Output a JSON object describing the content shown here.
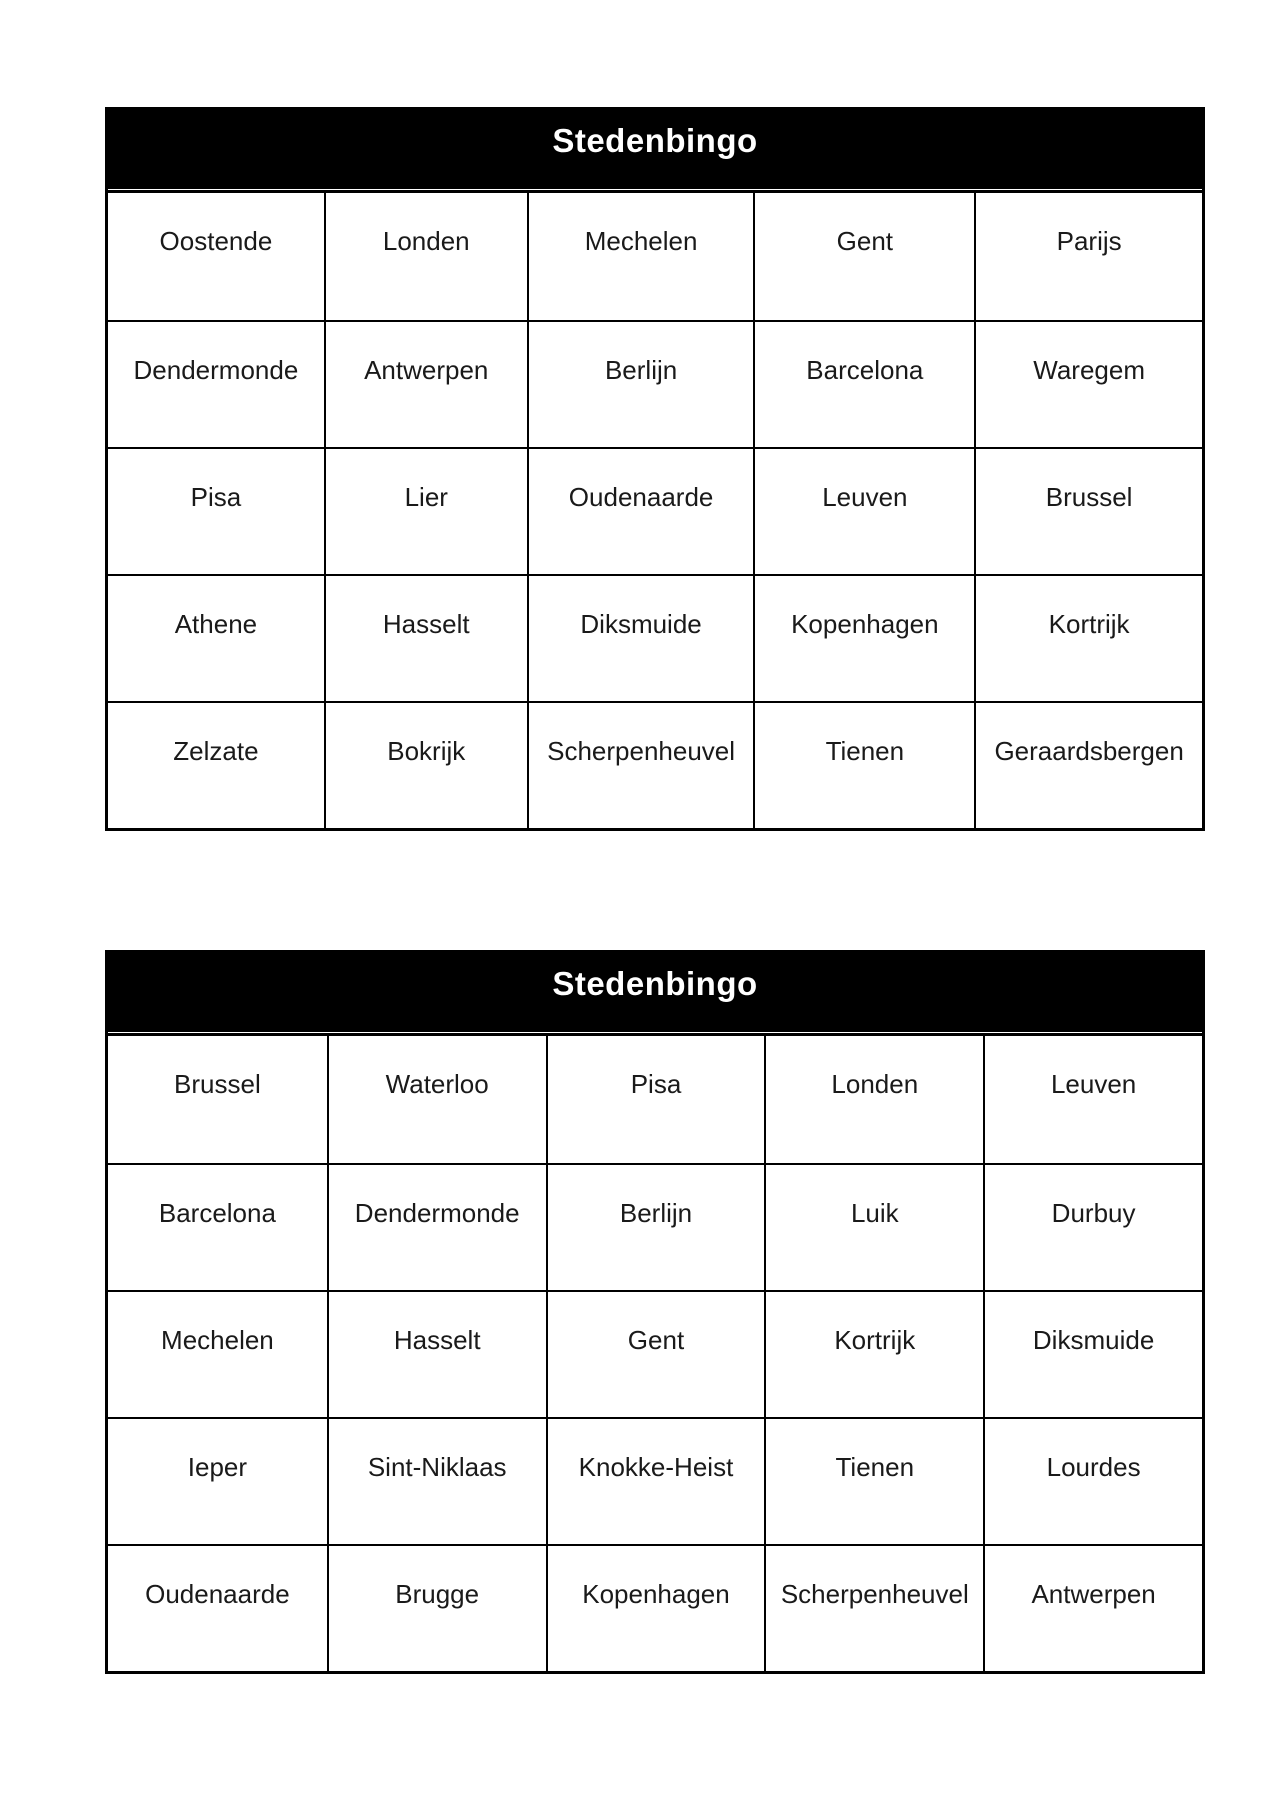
{
  "page": {
    "background": "#ffffff",
    "text_color": "#1a1a1a"
  },
  "colors": {
    "header_bg": "#000000",
    "header_text": "#ffffff",
    "border": "#000000"
  },
  "cards": [
    {
      "title": "Stedenbingo",
      "rows": [
        [
          "Oostende",
          "Londen",
          "Mechelen",
          "Gent",
          "Parijs"
        ],
        [
          "Dendermonde",
          "Antwerpen",
          "Berlijn",
          "Barcelona",
          "Waregem"
        ],
        [
          "Pisa",
          "Lier",
          "Oudenaarde",
          "Leuven",
          "Brussel"
        ],
        [
          "Athene",
          "Hasselt",
          "Diksmuide",
          "Kopenhagen",
          "Kortrijk"
        ],
        [
          "Zelzate",
          "Bokrijk",
          "Scherpenheuvel",
          "Tienen",
          "Geraardsbergen"
        ]
      ]
    },
    {
      "title": "Stedenbingo",
      "rows": [
        [
          "Brussel",
          "Waterloo",
          "Pisa",
          "Londen",
          "Leuven"
        ],
        [
          "Barcelona",
          "Dendermonde",
          "Berlijn",
          "Luik",
          "Durbuy"
        ],
        [
          "Mechelen",
          "Hasselt",
          "Gent",
          "Kortrijk",
          "Diksmuide"
        ],
        [
          "Ieper",
          "Sint-Niklaas",
          "Knokke-Heist",
          "Tienen",
          "Lourdes"
        ],
        [
          "Oudenaarde",
          "Brugge",
          "Kopenhagen",
          "Scherpenheuvel",
          "Antwerpen"
        ]
      ]
    }
  ]
}
